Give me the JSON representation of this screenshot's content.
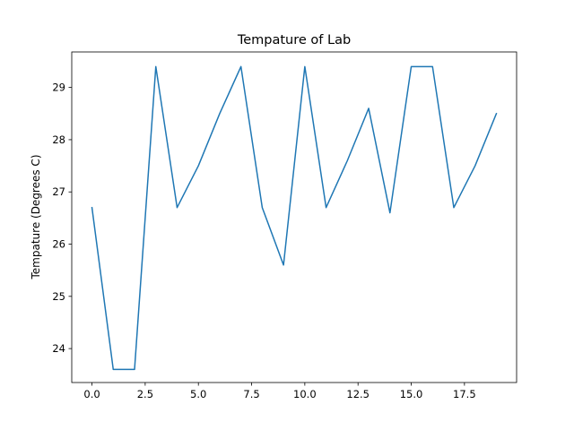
{
  "chart_data": {
    "type": "line",
    "title": "Tempature of Lab",
    "xlabel": "",
    "ylabel": "Tempature (Degrees C)",
    "xlim": [
      -0.95,
      19.95
    ],
    "ylim": [
      23.35,
      29.68
    ],
    "grid": false,
    "x_ticks": [
      0.0,
      2.5,
      5.0,
      7.5,
      10.0,
      12.5,
      15.0,
      17.5
    ],
    "x_tick_labels": [
      "0.0",
      "2.5",
      "5.0",
      "7.5",
      "10.0",
      "12.5",
      "15.0",
      "17.5"
    ],
    "y_ticks": [
      24,
      25,
      26,
      27,
      28,
      29
    ],
    "y_tick_labels": [
      "24",
      "25",
      "26",
      "27",
      "28",
      "29"
    ],
    "series": [
      {
        "color": "#1f77b4",
        "x": [
          0,
          1,
          2,
          3,
          4,
          5,
          6,
          7,
          8,
          9,
          10,
          11,
          12,
          13,
          14,
          15,
          16,
          17,
          18,
          19
        ],
        "y": [
          26.7,
          23.6,
          23.6,
          29.4,
          26.7,
          27.5,
          28.5,
          29.4,
          26.7,
          25.6,
          29.4,
          26.7,
          27.6,
          28.6,
          26.6,
          29.4,
          29.4,
          26.7,
          27.5,
          28.5
        ]
      }
    ]
  }
}
